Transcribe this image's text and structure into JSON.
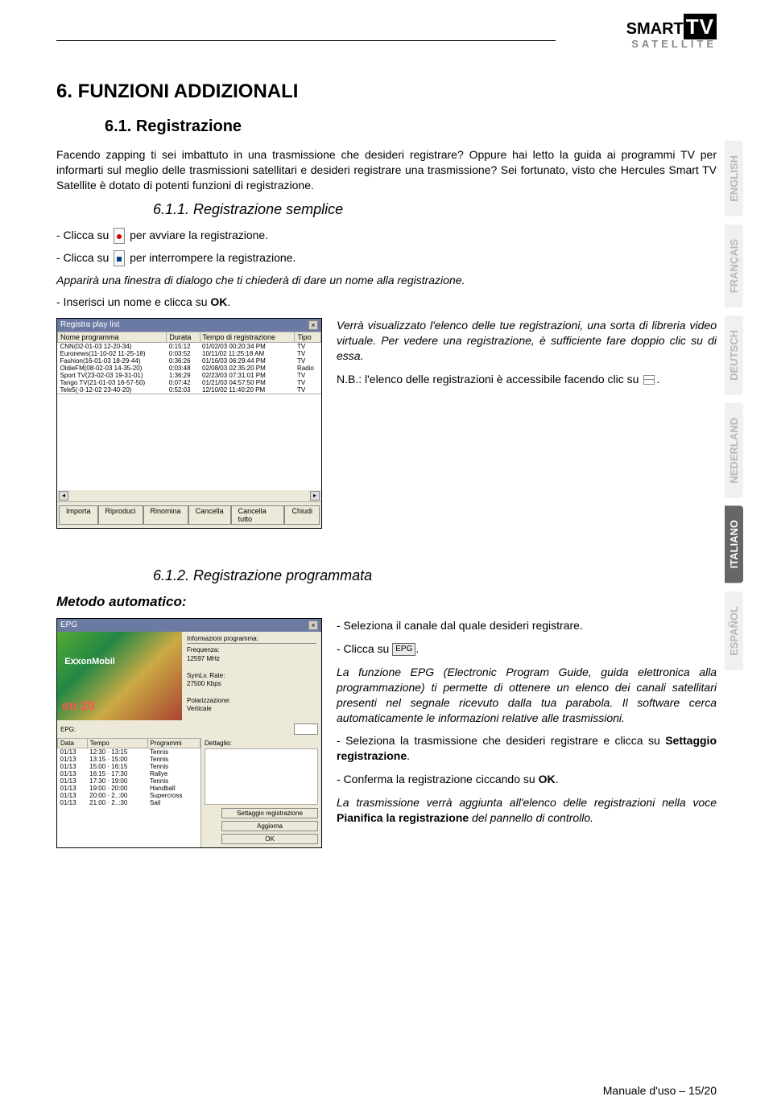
{
  "logo": {
    "brand": "SMART",
    "tv": "TV",
    "sub": "SATELLITE"
  },
  "lang_tabs": [
    "ENGLISH",
    "FRANÇAIS",
    "DEUTSCH",
    "NEDERLAND",
    "ITALIANO",
    "ESPAÑOL"
  ],
  "active_lang_index": 4,
  "h1": "6. FUNZIONI ADDIZIONALI",
  "h2_1": "6.1. Registrazione",
  "p1": "Facendo zapping ti sei imbattuto in una trasmissione che desideri registrare? Oppure hai letto la guida ai programmi TV per informarti sul meglio delle trasmissioni satellitari e desideri registrare una trasmissione? Sei fortunato, visto che Hercules Smart TV Satellite è dotato di potenti funzioni di registrazione.",
  "h3_1": "6.1.1. Registrazione semplice",
  "li1a": "- Clicca su ",
  "li1b": " per avviare la registrazione.",
  "li2a": "- Clicca su ",
  "li2b": " per interrompere la registrazione.",
  "p2": "Apparirà una finestra di dialogo che ti chiederà di dare un nome alla registrazione.",
  "p3a": "- Inserisci un nome e clicca su ",
  "p3b": "OK",
  "p3c": ".",
  "playlist_win": {
    "title": "Registra play list",
    "columns": [
      "Nome programma",
      "Durata",
      "Tempo di registrazione",
      "Tipo"
    ],
    "rows": [
      [
        "CNN(02-01-03 12-20-34)",
        "0:15:12",
        "01/02/03 00:20:34 PM",
        "TV"
      ],
      [
        "Euronews(11-10-02 11-25-18)",
        "0:03:52",
        "10/11/02 11:25:18 AM",
        "TV"
      ],
      [
        "Fashion(16-01-03 18-29-44)",
        "0:36:26",
        "01/16/03 06:29:44 PM",
        "TV"
      ],
      [
        "OldieFM(08-02-03 14-35-20)",
        "0:03:48",
        "02/08/03 02:35:20 PM",
        "Radio"
      ],
      [
        "Sport TV(23-02-03 19-31-01)",
        "1:36:29",
        "02/23/03 07:31:01 PM",
        "TV"
      ],
      [
        "Tango TV(21-01-03 16-57-50)",
        "0:07:42",
        "01/21/03 04:57:50 PM",
        "TV"
      ],
      [
        "Tele5(·0-12-02 23-40-20)",
        "0:52:03",
        "12/10/02 11:40:20 PM",
        "TV"
      ]
    ],
    "buttons": [
      "Importa",
      "Riproduci",
      "Rinomina",
      "Cancella",
      "Cancella tutto",
      "Chiudi"
    ]
  },
  "right1_p1": "Verrà visualizzato l'elenco delle tue registrazioni, una sorta di libreria video virtuale. Per vedere una registrazione, è sufficiente fare doppio clic su di essa.",
  "right1_p2a": "N.B.: l'elenco delle registrazioni è accessibile facendo clic su ",
  "right1_p2b": ".",
  "h3_2": "6.1.2. Registrazione programmata",
  "method_label": "Metodo automatico:",
  "epg_win": {
    "title": "EPG",
    "banner": "E𝗑𝗑onMobil",
    "year_overlay": "en 20",
    "info_title": "Informazioni programma:",
    "info_lines": [
      "Frequenza:",
      "12597 MHz",
      "",
      "SymLv. Rate:",
      "27500 Kbps",
      "",
      "Polarizzazione:",
      "Verticale"
    ],
    "epg_label": "EPG:",
    "detail_label": "Dettaglio:",
    "list_cols": [
      "Data",
      "Tempo",
      "Programmi"
    ],
    "list_rows": [
      [
        "01/13",
        "12:30 · 13:15",
        "Tennis"
      ],
      [
        "01/13",
        "13:15 · 15:00",
        "Tennis"
      ],
      [
        "01/13",
        "15:00 · 16:15",
        "Tennis"
      ],
      [
        "01/13",
        "16:15 · 17:30",
        "Rallye"
      ],
      [
        "01/13",
        "17:30 · 19:00",
        "Tennis"
      ],
      [
        "01/13",
        "19:00 · 20:00",
        "Handball"
      ],
      [
        "01/13",
        "20:00 · 2..:00",
        "Supercross"
      ],
      [
        "01/13",
        "21:00 · 2..:30",
        "Sail"
      ]
    ],
    "btn_rec": "Settaggio registrazione",
    "btn_update": "Aggiorna",
    "btn_ok": "OK"
  },
  "r2_p1": "- Seleziona il canale dal quale desideri registrare.",
  "r2_p2a": "- Clicca su ",
  "r2_p2b": ".",
  "epg_btn_text": "EPG",
  "r2_p3": "La funzione EPG (Electronic Program Guide, guida elettronica alla programmazione) ti permette di ottenere un elenco dei canali satellitari presenti nel segnale ricevuto dalla tua parabola. Il software cerca automaticamente le informazioni relative alle trasmissioni.",
  "r2_p4a": "- Seleziona la trasmissione che desideri registrare e clicca su ",
  "r2_p4b": "Settaggio registrazione",
  "r2_p4c": ".",
  "r2_p5a": "- Conferma la registrazione ciccando su ",
  "r2_p5b": "OK",
  "r2_p5c": ".",
  "r2_p6a": "La trasmissione verrà aggiunta all'elenco delle registrazioni nella voce ",
  "r2_p6b": "Pianifica la registrazione",
  "r2_p6c": " del pannello di controllo.",
  "footer": "Manuale d'uso – 15/20"
}
